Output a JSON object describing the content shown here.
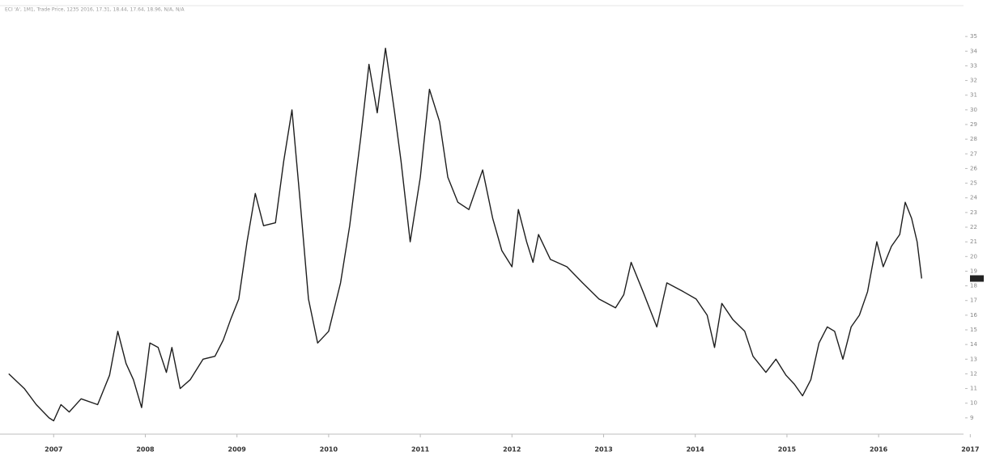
{
  "chart_data": {
    "type": "line",
    "title": "ECI 'A', 1M1, Trade Price, 1235 2016, 17.31, 18.44, 17.64, 18.96, N/A, N/A",
    "x": [
      2006.51,
      2006.68,
      2006.81,
      2006.95,
      2007.0,
      2007.08,
      2007.17,
      2007.3,
      2007.48,
      2007.61,
      2007.7,
      2007.79,
      2007.87,
      2007.96,
      2008.05,
      2008.14,
      2008.23,
      2008.29,
      2008.38,
      2008.49,
      2008.63,
      2008.76,
      2008.85,
      2008.93,
      2009.02,
      2009.11,
      2009.2,
      2009.29,
      2009.42,
      2009.51,
      2009.6,
      2009.69,
      2009.78,
      2009.88,
      2010.0,
      2010.13,
      2010.23,
      2010.35,
      2010.44,
      2010.53,
      2010.62,
      2010.72,
      2010.79,
      2010.89,
      2011.0,
      2011.1,
      2011.21,
      2011.3,
      2011.41,
      2011.53,
      2011.68,
      2011.79,
      2011.89,
      2012.0,
      2012.07,
      2012.16,
      2012.23,
      2012.29,
      2012.42,
      2012.6,
      2012.77,
      2012.95,
      2013.13,
      2013.22,
      2013.3,
      2013.43,
      2013.58,
      2013.69,
      2013.87,
      2014.01,
      2014.13,
      2014.21,
      2014.29,
      2014.41,
      2014.54,
      2014.63,
      2014.77,
      2014.88,
      2014.99,
      2015.08,
      2015.17,
      2015.26,
      2015.35,
      2015.44,
      2015.52,
      2015.61,
      2015.7,
      2015.79,
      2015.88,
      2015.98,
      2016.05,
      2016.14,
      2016.23,
      2016.29,
      2016.36,
      2016.42,
      2016.47
    ],
    "series": [
      {
        "color": "#1e1e1e",
        "values": [
          12.0,
          11.0,
          9.9,
          9.0,
          8.8,
          9.9,
          9.4,
          10.3,
          9.9,
          11.9,
          14.9,
          12.7,
          11.6,
          9.7,
          14.1,
          13.8,
          12.1,
          13.8,
          11.0,
          11.6,
          13.0,
          13.2,
          14.3,
          15.7,
          17.1,
          21.0,
          24.3,
          22.1,
          22.3,
          26.5,
          30.0,
          23.7,
          17.1,
          14.1,
          14.9,
          18.2,
          22.1,
          28.1,
          33.1,
          29.8,
          34.2,
          29.8,
          26.5,
          21.0,
          25.4,
          31.4,
          29.2,
          25.4,
          23.7,
          23.2,
          25.9,
          22.6,
          20.4,
          19.3,
          23.2,
          21.0,
          19.6,
          21.5,
          19.8,
          19.3,
          18.2,
          17.1,
          16.5,
          17.4,
          19.6,
          17.6,
          15.2,
          18.2,
          17.6,
          17.1,
          16.0,
          13.8,
          16.8,
          15.7,
          14.9,
          13.2,
          12.1,
          13.0,
          11.9,
          11.3,
          10.5,
          11.6,
          14.1,
          15.2,
          14.9,
          13.0,
          15.2,
          16.0,
          17.6,
          21.0,
          19.3,
          20.7,
          21.5,
          23.7,
          22.6,
          21.0,
          18.5
        ]
      }
    ],
    "xlim": [
      2006.45,
      2017.05
    ],
    "xticks": [
      2007,
      2008,
      2009,
      2010,
      2011,
      2012,
      2013,
      2014,
      2015,
      2016,
      2017
    ],
    "ylim": [
      8,
      36
    ],
    "yticks": [
      9,
      10,
      11,
      12,
      13,
      14,
      15,
      16,
      17,
      18,
      19,
      20,
      21,
      22,
      23,
      24,
      25,
      26,
      27,
      28,
      29,
      30,
      31,
      32,
      33,
      34,
      35
    ],
    "grid": false
  }
}
